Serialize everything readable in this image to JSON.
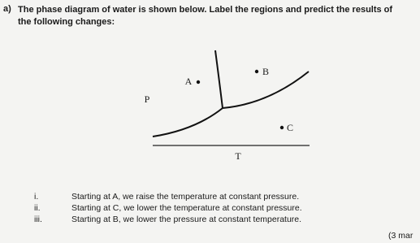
{
  "question": {
    "label": "a)",
    "text": "The phase diagram of water is shown below. Label the regions and predict the results of the following changes:"
  },
  "diagram": {
    "y_axis": "P",
    "x_axis": "T",
    "points": [
      "A",
      "B",
      "C"
    ]
  },
  "items": [
    {
      "number": "i.",
      "text": "Starting at A, we raise the temperature at constant pressure."
    },
    {
      "number": "ii.",
      "text": "Starting at C, we lower the temperature at constant pressure."
    },
    {
      "number": "iii.",
      "text": "Starting at B, we lower the pressure at constant temperature."
    }
  ],
  "marks": "(3 mar"
}
